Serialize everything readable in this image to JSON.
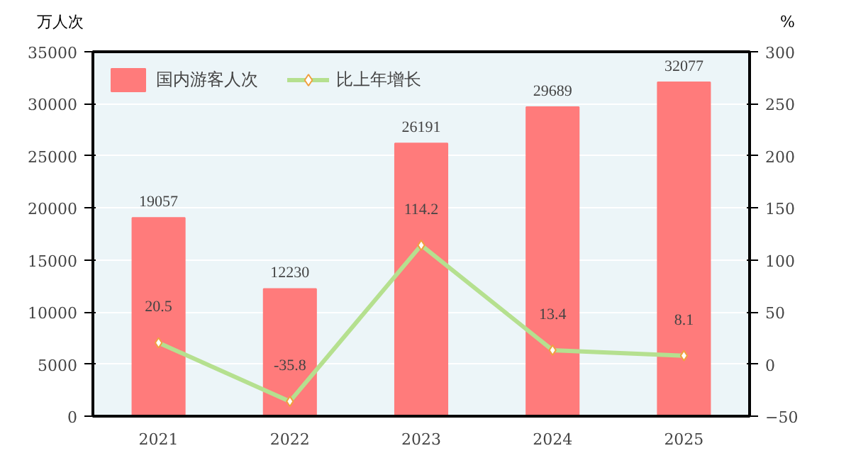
{
  "chart_data": {
    "type": "bar",
    "categories": [
      "2021",
      "2022",
      "2023",
      "2024",
      "2025"
    ],
    "series": [
      {
        "name": "国内游客人次",
        "color": "#ff7b7b",
        "values": [
          19057,
          12230,
          26191,
          29689,
          32077
        ]
      },
      {
        "name": "比上年增长",
        "type": "line",
        "axis": "y2",
        "color": "#b5e08f",
        "marker": "diamond",
        "values": [
          20.5,
          -35.8,
          114.2,
          13.4,
          8.1
        ]
      }
    ],
    "ylabel": "万人次",
    "y2label": "%",
    "ylim": [
      0,
      35000
    ],
    "yticks": [
      0,
      5000,
      10000,
      15000,
      20000,
      25000,
      30000,
      35000
    ],
    "y2lim": [
      -50,
      300
    ],
    "y2ticks": [
      -50,
      0,
      50,
      100,
      150,
      200,
      250,
      300
    ],
    "data_labels": true,
    "grid": "y",
    "legend": "top left"
  }
}
